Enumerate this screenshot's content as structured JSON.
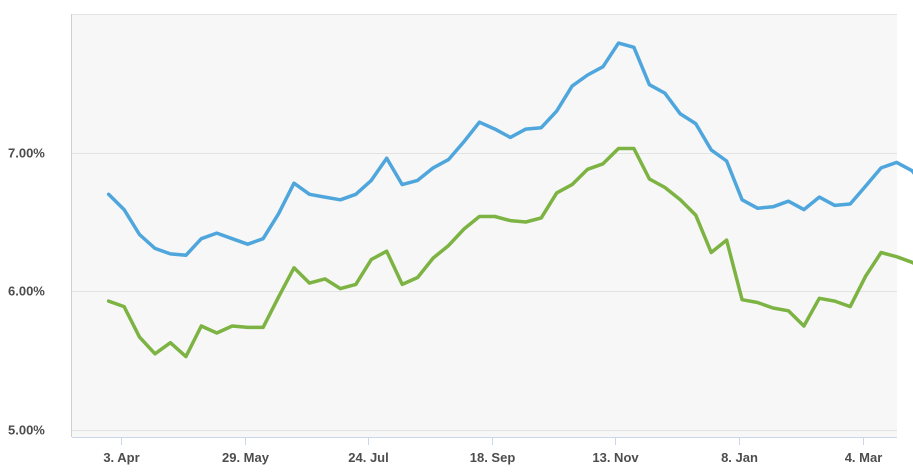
{
  "chart_data": {
    "type": "line",
    "title": "",
    "xlabel": "",
    "ylabel": "",
    "y_unit": "%",
    "ylim": [
      4.95,
      8.0
    ],
    "y_ticks": [
      {
        "value": 5.0,
        "label": "5.00%"
      },
      {
        "value": 6.0,
        "label": "6.00%"
      },
      {
        "value": 7.0,
        "label": "7.00%"
      }
    ],
    "x_ticks": [
      "3. Apr",
      "29. May",
      "24. Jul",
      "18. Sep",
      "13. Nov",
      "8. Jan",
      "4. Mar"
    ],
    "x_start_offset": -0.8,
    "x_per_tick": 8,
    "grid": true,
    "legend": "none",
    "background": "#f7f7f7",
    "series": [
      {
        "color": "#4ea6dc",
        "values": [
          6.7,
          6.59,
          6.41,
          6.31,
          6.27,
          6.26,
          6.38,
          6.42,
          6.38,
          6.34,
          6.38,
          6.56,
          6.78,
          6.7,
          6.68,
          6.66,
          6.7,
          6.8,
          6.96,
          6.77,
          6.8,
          6.89,
          6.95,
          7.08,
          7.22,
          7.17,
          7.11,
          7.17,
          7.18,
          7.3,
          7.48,
          7.56,
          7.62,
          7.79,
          7.76,
          7.49,
          7.43,
          7.28,
          7.21,
          7.02,
          6.94,
          6.66,
          6.6,
          6.61,
          6.65,
          6.59,
          6.68,
          6.62,
          6.63,
          6.76,
          6.89,
          6.93,
          6.87,
          6.73
        ]
      },
      {
        "color": "#7cb342",
        "values": [
          5.93,
          5.89,
          5.67,
          5.55,
          5.63,
          5.53,
          5.75,
          5.7,
          5.75,
          5.74,
          5.74,
          5.96,
          6.17,
          6.06,
          6.09,
          6.02,
          6.05,
          6.23,
          6.29,
          6.05,
          6.1,
          6.24,
          6.33,
          6.45,
          6.54,
          6.54,
          6.51,
          6.5,
          6.53,
          6.71,
          6.77,
          6.88,
          6.92,
          7.03,
          7.03,
          6.81,
          6.75,
          6.66,
          6.55,
          6.28,
          6.37,
          5.94,
          5.92,
          5.88,
          5.86,
          5.75,
          5.95,
          5.93,
          5.89,
          6.11,
          6.28,
          6.25,
          6.21,
          6.15
        ]
      }
    ]
  }
}
